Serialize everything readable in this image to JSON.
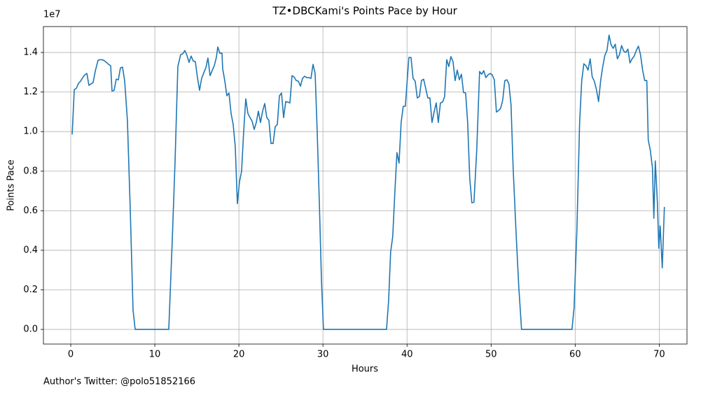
{
  "chart_data": {
    "type": "line",
    "title": "TZ•DBCKami's Points Pace by Hour",
    "xlabel": "Hours",
    "ylabel": "Points Pace",
    "y_offset_label": "1e7",
    "footnote": "Author's Twitter: @polo51852166",
    "grid": true,
    "xlim": [
      -3.25,
      73.3
    ],
    "ylim": [
      -0.074,
      1.531
    ],
    "xticks": [
      0,
      10,
      20,
      30,
      40,
      50,
      60,
      70
    ],
    "yticks": [
      {
        "value": 0,
        "label": "0.0"
      },
      0.2,
      0.4,
      0.6,
      0.8,
      {
        "value": 1,
        "label": "1.0"
      },
      1.2,
      1.4
    ],
    "x": [
      0.17,
      0.42,
      0.67,
      0.92,
      1.17,
      1.42,
      1.67,
      1.92,
      2.16,
      2.41,
      2.66,
      2.91,
      3.25,
      3.58,
      3.91,
      4.25,
      4.5,
      4.75,
      4.91,
      5.16,
      5.41,
      5.66,
      5.91,
      6.16,
      6.41,
      6.74,
      7.08,
      7.41,
      7.66,
      11.66,
      12.07,
      12.41,
      12.74,
      13.07,
      13.32,
      13.57,
      13.82,
      14.07,
      14.32,
      14.57,
      14.82,
      15.07,
      15.32,
      15.57,
      15.82,
      16.07,
      16.32,
      16.57,
      16.82,
      17.07,
      17.32,
      17.49,
      17.74,
      17.99,
      18.07,
      18.32,
      18.57,
      18.82,
      19.07,
      19.32,
      19.57,
      19.82,
      20.07,
      20.32,
      20.57,
      20.82,
      21.07,
      21.32,
      21.57,
      21.82,
      22.07,
      22.32,
      22.57,
      22.82,
      23.07,
      23.32,
      23.57,
      23.82,
      24.07,
      24.32,
      24.57,
      24.82,
      25.07,
      25.32,
      25.57,
      25.82,
      26.07,
      26.32,
      26.57,
      26.82,
      27.07,
      27.32,
      27.57,
      27.82,
      28.07,
      28.32,
      28.57,
      28.82,
      29.07,
      29.32,
      29.57,
      29.82,
      30.06,
      37.56,
      37.81,
      38.05,
      38.3,
      38.55,
      38.8,
      39.05,
      39.3,
      39.55,
      39.8,
      40.05,
      40.22,
      40.47,
      40.72,
      40.97,
      41.22,
      41.47,
      41.72,
      41.97,
      42.22,
      42.47,
      42.72,
      42.97,
      43.22,
      43.47,
      43.72,
      43.97,
      44.22,
      44.47,
      44.72,
      44.97,
      45.22,
      45.47,
      45.72,
      45.97,
      46.22,
      46.47,
      46.72,
      46.97,
      47.21,
      47.46,
      47.71,
      47.96,
      48.29,
      48.63,
      48.88,
      49.13,
      49.38,
      49.63,
      49.88,
      50.13,
      50.38,
      50.63,
      50.88,
      51.13,
      51.38,
      51.63,
      51.88,
      52.12,
      52.37,
      52.62,
      52.96,
      53.29,
      53.62,
      59.62,
      59.87,
      60.2,
      60.53,
      60.78,
      61.03,
      61.28,
      61.53,
      61.78,
      62.03,
      62.28,
      62.53,
      62.78,
      63.03,
      63.28,
      63.53,
      63.78,
      64.03,
      64.27,
      64.52,
      64.77,
      65.02,
      65.27,
      65.52,
      65.77,
      66.02,
      66.27,
      66.52,
      66.77,
      67.02,
      67.27,
      67.52,
      67.77,
      68.02,
      68.27,
      68.52,
      68.69,
      68.94,
      69.19,
      69.36,
      69.53,
      69.78,
      69.95,
      70.11,
      70.36,
      70.61
    ],
    "series": [
      {
        "name": "Points Pace",
        "color": "#1f77b4",
        "values": [
          0.986,
          1.212,
          1.219,
          1.244,
          1.255,
          1.273,
          1.287,
          1.294,
          1.234,
          1.241,
          1.248,
          1.304,
          1.361,
          1.364,
          1.361,
          1.35,
          1.34,
          1.333,
          1.205,
          1.209,
          1.265,
          1.262,
          1.322,
          1.326,
          1.258,
          1.057,
          0.604,
          0.099,
          0,
          0,
          0.445,
          0.852,
          1.329,
          1.389,
          1.393,
          1.41,
          1.386,
          1.35,
          1.382,
          1.357,
          1.354,
          1.273,
          1.209,
          1.269,
          1.297,
          1.322,
          1.372,
          1.283,
          1.308,
          1.333,
          1.375,
          1.428,
          1.396,
          1.396,
          1.318,
          1.258,
          1.181,
          1.195,
          1.092,
          1.036,
          0.923,
          0.636,
          0.746,
          0.799,
          1.0,
          1.166,
          1.092,
          1.071,
          1.053,
          1.011,
          1.046,
          1.103,
          1.046,
          1.103,
          1.142,
          1.071,
          1.057,
          0.94,
          0.94,
          1.025,
          1.036,
          1.181,
          1.195,
          1.071,
          1.152,
          1.149,
          1.145,
          1.283,
          1.276,
          1.258,
          1.255,
          1.23,
          1.269,
          1.28,
          1.273,
          1.273,
          1.269,
          1.34,
          1.294,
          0.993,
          0.64,
          0.251,
          0,
          0,
          0.145,
          0.392,
          0.47,
          0.693,
          0.894,
          0.841,
          1.046,
          1.128,
          1.128,
          1.276,
          1.375,
          1.375,
          1.269,
          1.255,
          1.17,
          1.177,
          1.258,
          1.265,
          1.219,
          1.17,
          1.17,
          1.046,
          1.099,
          1.145,
          1.046,
          1.145,
          1.149,
          1.177,
          1.364,
          1.329,
          1.379,
          1.354,
          1.258,
          1.311,
          1.262,
          1.29,
          1.198,
          1.195,
          1.046,
          0.764,
          0.64,
          0.643,
          0.905,
          1.304,
          1.29,
          1.308,
          1.273,
          1.287,
          1.294,
          1.287,
          1.262,
          1.099,
          1.106,
          1.117,
          1.159,
          1.258,
          1.262,
          1.241,
          1.135,
          0.817,
          0.498,
          0.216,
          0,
          0,
          0.11,
          0.498,
          1.046,
          1.258,
          1.343,
          1.333,
          1.311,
          1.368,
          1.276,
          1.255,
          1.212,
          1.152,
          1.258,
          1.329,
          1.386,
          1.41,
          1.488,
          1.439,
          1.421,
          1.442,
          1.368,
          1.389,
          1.435,
          1.407,
          1.4,
          1.417,
          1.347,
          1.368,
          1.382,
          1.41,
          1.432,
          1.389,
          1.311,
          1.258,
          1.258,
          0.958,
          0.905,
          0.817,
          0.562,
          0.852,
          0.64,
          0.41,
          0.523,
          0.311,
          0.619
        ]
      }
    ]
  }
}
